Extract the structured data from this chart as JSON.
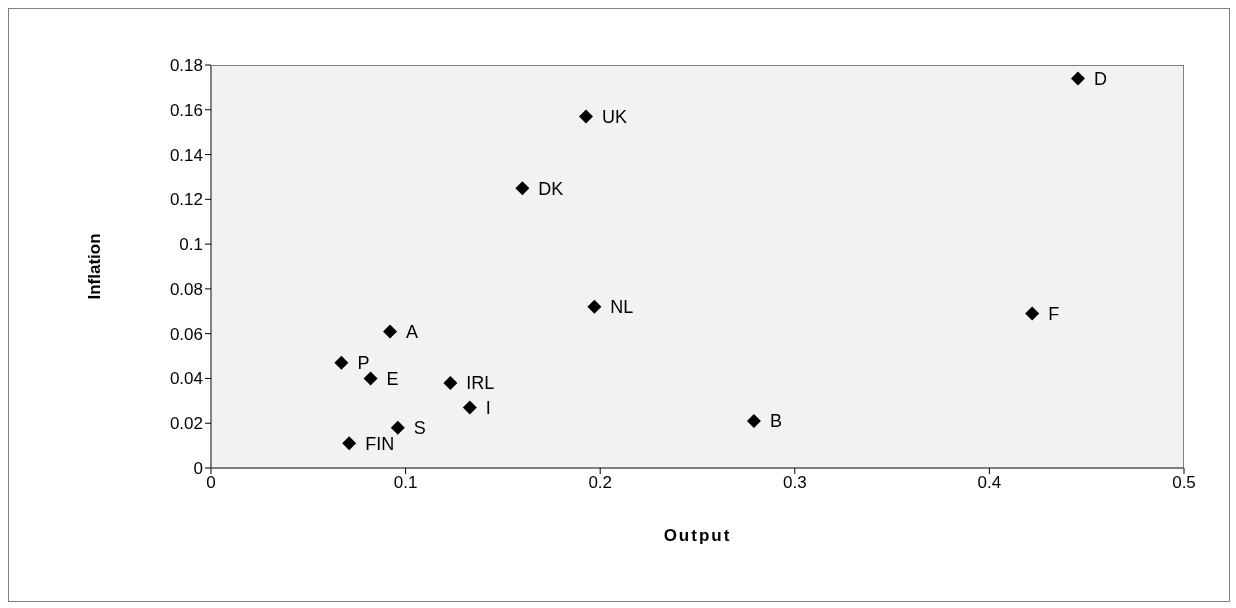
{
  "chart_data": {
    "type": "scatter",
    "xlabel": "Output",
    "ylabel": "Inflation",
    "x": [
      0.4455,
      0.1927,
      0.16,
      0.197,
      0.422,
      0.092,
      0.067,
      0.082,
      0.123,
      0.133,
      0.279,
      0.096,
      0.071
    ],
    "series": [
      {
        "color": "#000000",
        "values": [
          0.174,
          0.157,
          0.125,
          0.072,
          0.069,
          0.061,
          0.047,
          0.04,
          0.038,
          0.027,
          0.021,
          0.018,
          0.011
        ]
      }
    ],
    "annotations": [
      {
        "text": "D",
        "x": 0.4455,
        "y": 0.174
      },
      {
        "text": "UK",
        "x": 0.1927,
        "y": 0.157
      },
      {
        "text": "DK",
        "x": 0.16,
        "y": 0.125
      },
      {
        "text": "NL",
        "x": 0.197,
        "y": 0.072
      },
      {
        "text": "F",
        "x": 0.422,
        "y": 0.069
      },
      {
        "text": "A",
        "x": 0.092,
        "y": 0.061
      },
      {
        "text": "P",
        "x": 0.067,
        "y": 0.047
      },
      {
        "text": "E",
        "x": 0.082,
        "y": 0.04
      },
      {
        "text": "IRL",
        "x": 0.123,
        "y": 0.038
      },
      {
        "text": "I",
        "x": 0.133,
        "y": 0.027
      },
      {
        "text": "B",
        "x": 0.279,
        "y": 0.021
      },
      {
        "text": "S",
        "x": 0.096,
        "y": 0.018
      },
      {
        "text": "FIN",
        "x": 0.071,
        "y": 0.011
      }
    ],
    "xlim": [
      0,
      0.5
    ],
    "xticks": [
      0,
      0.1,
      0.2,
      0.3,
      0.4,
      0.5
    ],
    "ylim": [
      0,
      0.18
    ],
    "yticks": [
      0,
      0.02,
      0.04,
      0.06,
      0.08,
      0.1,
      0.12,
      0.14,
      0.16,
      0.18
    ],
    "grid": false,
    "marker": "diamond"
  }
}
